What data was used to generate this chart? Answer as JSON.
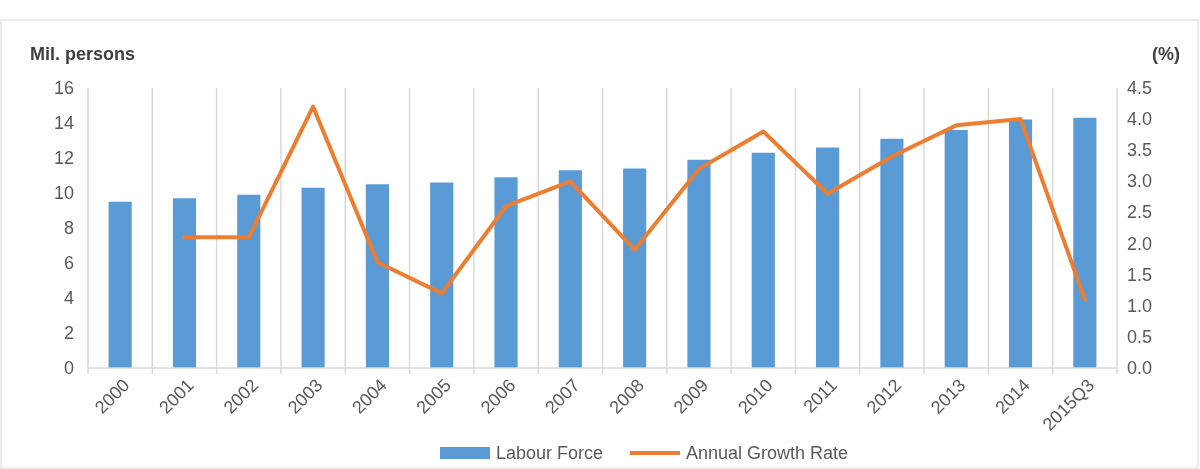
{
  "chart_data": {
    "type": "bar",
    "ylabel": "Mil. persons",
    "y2label": "(%)",
    "categories": [
      "2000",
      "2001",
      "2002",
      "2003",
      "2004",
      "2005",
      "2006",
      "2007",
      "2008",
      "2009",
      "2010",
      "2011",
      "2012",
      "2013",
      "2014",
      "2015Q3"
    ],
    "series": [
      {
        "name": "Labour Force",
        "color": "#5b9bd5",
        "values": [
          9.5,
          9.7,
          9.9,
          10.3,
          10.5,
          10.6,
          10.9,
          11.3,
          11.4,
          11.9,
          12.3,
          12.6,
          13.1,
          13.6,
          14.2,
          14.3
        ]
      },
      {
        "name": "Annual Growth Rate",
        "type": "line",
        "axis": "y2",
        "color": "#ed7d31",
        "values": [
          null,
          2.1,
          2.1,
          4.2,
          1.7,
          1.2,
          2.6,
          3.0,
          1.9,
          3.2,
          3.8,
          2.8,
          3.4,
          3.9,
          4.0,
          1.1
        ]
      }
    ],
    "ylim": [
      0,
      16
    ],
    "yticks": [
      0,
      2,
      4,
      6,
      8,
      10,
      12,
      14,
      16
    ],
    "y2lim": [
      0,
      4.5
    ],
    "y2ticks": [
      {
        "value": 0,
        "label": "0.0"
      },
      {
        "value": 0.5,
        "label": "0.5"
      },
      {
        "value": 1,
        "label": "1.0"
      },
      {
        "value": 1.5,
        "label": "1.5"
      },
      {
        "value": 2,
        "label": "2.0"
      },
      {
        "value": 2.5,
        "label": "2.5"
      },
      {
        "value": 3,
        "label": "3.0"
      },
      {
        "value": 3.5,
        "label": "3.5"
      },
      {
        "value": 4,
        "label": "4.0"
      },
      {
        "value": 4.5,
        "label": "4.5"
      }
    ],
    "grid": "x",
    "legend": "bottom",
    "marker": "none",
    "line_style": "solid"
  }
}
